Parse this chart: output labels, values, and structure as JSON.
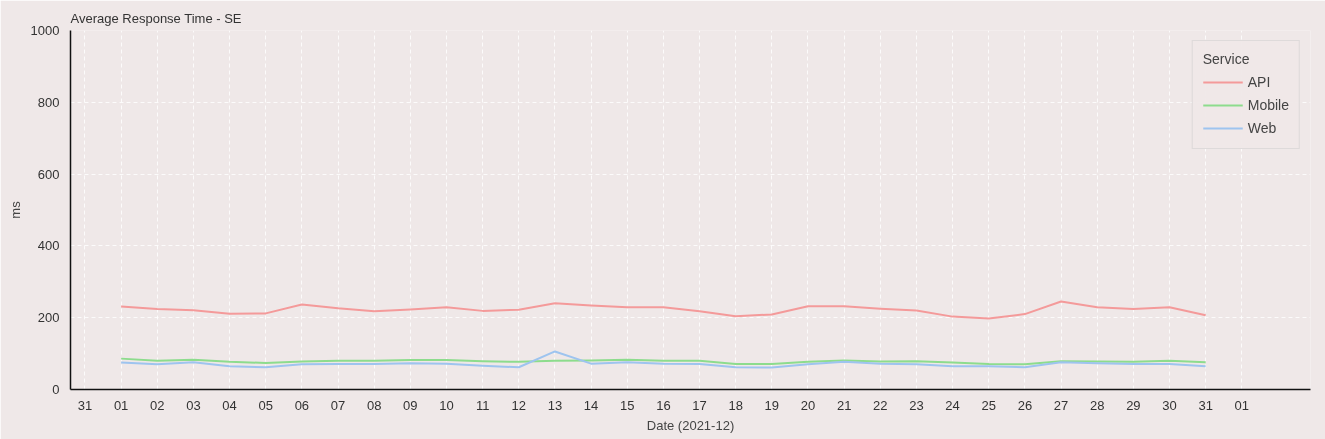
{
  "chart_data": {
    "type": "line",
    "title": "Average Response Time - SE",
    "xlabel": "Date (2021-12)",
    "ylabel": "ms",
    "legend_title": "Service",
    "x": [
      "2021-12-01",
      "2021-12-02",
      "2021-12-03",
      "2021-12-04",
      "2021-12-05",
      "2021-12-06",
      "2021-12-07",
      "2021-12-08",
      "2021-12-09",
      "2021-12-10",
      "2021-12-11",
      "2021-12-12",
      "2021-12-13",
      "2021-12-14",
      "2021-12-15",
      "2021-12-16",
      "2021-12-17",
      "2021-12-18",
      "2021-12-19",
      "2021-12-20",
      "2021-12-21",
      "2021-12-22",
      "2021-12-23",
      "2021-12-24",
      "2021-12-25",
      "2021-12-26",
      "2021-12-27",
      "2021-12-28",
      "2021-12-29",
      "2021-12-30",
      "2021-12-31"
    ],
    "series": [
      {
        "name": "API",
        "color": "#f49a9a",
        "values": [
          231,
          224,
          221,
          211,
          212,
          237,
          226,
          218,
          223,
          229,
          219,
          222,
          240,
          234,
          229,
          229,
          218,
          204,
          209,
          232,
          232,
          225,
          220,
          203,
          198,
          210,
          245,
          229,
          224,
          229,
          207
        ]
      },
      {
        "name": "Mobile",
        "color": "#8ddc8d",
        "values": [
          86,
          80,
          83,
          77,
          74,
          78,
          80,
          80,
          82,
          82,
          79,
          77,
          80,
          81,
          83,
          80,
          80,
          71,
          71,
          77,
          81,
          78,
          79,
          75,
          71,
          70,
          79,
          78,
          77,
          80,
          76
        ]
      },
      {
        "name": "Web",
        "color": "#9ec4ef",
        "values": [
          75,
          70,
          76,
          65,
          62,
          70,
          71,
          71,
          73,
          72,
          66,
          62,
          106,
          72,
          76,
          72,
          71,
          62,
          61,
          70,
          77,
          72,
          70,
          65,
          65,
          62,
          76,
          73,
          71,
          71,
          65
        ]
      }
    ],
    "xlim": [
      "2021-11-29T14:24",
      "2022-01-02T21:36"
    ],
    "xticks": [
      {
        "value": "2021-11-30",
        "label": "31"
      },
      {
        "value": "2021-12-01",
        "label": "01"
      },
      {
        "value": "2021-12-02",
        "label": "02"
      },
      {
        "value": "2021-12-03",
        "label": "03"
      },
      {
        "value": "2021-12-04",
        "label": "04"
      },
      {
        "value": "2021-12-05",
        "label": "05"
      },
      {
        "value": "2021-12-06",
        "label": "06"
      },
      {
        "value": "2021-12-07",
        "label": "07"
      },
      {
        "value": "2021-12-08",
        "label": "08"
      },
      {
        "value": "2021-12-09",
        "label": "09"
      },
      {
        "value": "2021-12-10",
        "label": "10"
      },
      {
        "value": "2021-12-11",
        "label": "11"
      },
      {
        "value": "2021-12-12",
        "label": "12"
      },
      {
        "value": "2021-12-13",
        "label": "13"
      },
      {
        "value": "2021-12-14",
        "label": "14"
      },
      {
        "value": "2021-12-15",
        "label": "15"
      },
      {
        "value": "2021-12-16",
        "label": "16"
      },
      {
        "value": "2021-12-17",
        "label": "17"
      },
      {
        "value": "2021-12-18",
        "label": "18"
      },
      {
        "value": "2021-12-19",
        "label": "19"
      },
      {
        "value": "2021-12-20",
        "label": "20"
      },
      {
        "value": "2021-12-21",
        "label": "21"
      },
      {
        "value": "2021-12-22",
        "label": "22"
      },
      {
        "value": "2021-12-23",
        "label": "23"
      },
      {
        "value": "2021-12-24",
        "label": "24"
      },
      {
        "value": "2021-12-25",
        "label": "25"
      },
      {
        "value": "2021-12-26",
        "label": "26"
      },
      {
        "value": "2021-12-27",
        "label": "27"
      },
      {
        "value": "2021-12-28",
        "label": "28"
      },
      {
        "value": "2021-12-29",
        "label": "29"
      },
      {
        "value": "2021-12-30",
        "label": "30"
      },
      {
        "value": "2021-12-31",
        "label": "31"
      },
      {
        "value": "2022-01-01",
        "label": "01"
      }
    ],
    "ylim": [
      0,
      1000
    ],
    "yticks": [
      0,
      200,
      400,
      600,
      800,
      1000
    ],
    "grid": true,
    "legend": "top right",
    "marker": "none",
    "line_style": "solid"
  }
}
